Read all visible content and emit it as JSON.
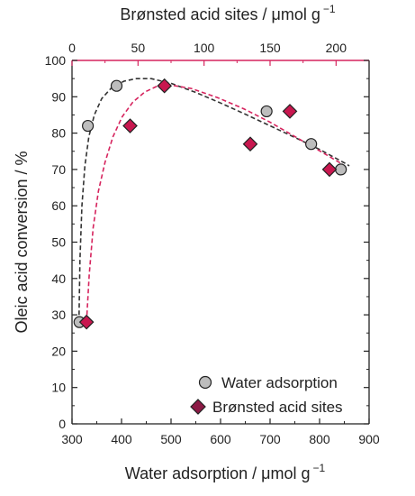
{
  "chart_data": {
    "type": "scatter",
    "xlabel": "Water adsorption / μmol g",
    "xlabel_sup": "−1",
    "x2label": "Brønsted acid sites / μmol g",
    "x2label_sup": "−1",
    "ylabel": "Oleic acid conversion / %",
    "xlim": [
      300,
      900
    ],
    "x2lim": [
      0,
      225
    ],
    "ylim": [
      0,
      100
    ],
    "xticks": [
      300,
      400,
      500,
      600,
      700,
      800,
      900
    ],
    "x2ticks": [
      0,
      50,
      100,
      150,
      200
    ],
    "yticks": [
      0,
      10,
      20,
      30,
      40,
      50,
      60,
      70,
      80,
      90,
      100
    ],
    "grid": false,
    "legend_position": "bottom-right",
    "top_axis_color": "#d6245e",
    "series": [
      {
        "name": "Water adsorption",
        "axis": "bottom",
        "marker": "circle",
        "color": "#bdbdbd",
        "fit_color": "#333333",
        "points": [
          {
            "x": 315,
            "y": 28
          },
          {
            "x": 332,
            "y": 82
          },
          {
            "x": 390,
            "y": 93
          },
          {
            "x": 693,
            "y": 86
          },
          {
            "x": 783,
            "y": 77
          },
          {
            "x": 843,
            "y": 70
          }
        ]
      },
      {
        "name": "Brønsted acid sites",
        "axis": "top",
        "marker": "diamond",
        "color": "#c8174f",
        "fit_color": "#d6245e",
        "points": [
          {
            "x": 11,
            "y": 28
          },
          {
            "x": 44,
            "y": 82
          },
          {
            "x": 70,
            "y": 93
          },
          {
            "x": 135,
            "y": 77
          },
          {
            "x": 165,
            "y": 86
          },
          {
            "x": 195,
            "y": 70
          }
        ]
      }
    ],
    "fits": [
      {
        "series": "Water adsorption",
        "style": "dashed",
        "x": [
          314,
          316,
          320,
          326,
          334,
          345,
          360,
          380,
          405,
          430,
          460,
          500,
          550,
          600,
          650,
          700,
          750,
          800,
          850,
          860
        ],
        "y": [
          28,
          45,
          60,
          71,
          79,
          85,
          89.5,
          92.5,
          94.3,
          95,
          95,
          93.7,
          91.2,
          88.3,
          85.2,
          82,
          78.8,
          75.5,
          71.8,
          71
        ]
      },
      {
        "series": "Brønsted acid sites",
        "style": "dashed",
        "x": [
          11,
          13,
          16,
          20,
          25,
          31,
          38,
          46,
          55,
          65,
          75,
          90,
          110,
          130,
          150,
          170,
          190,
          205
        ],
        "y": [
          28,
          41,
          54,
          64,
          72,
          79,
          84.5,
          88.5,
          91.3,
          93,
          93.2,
          92.3,
          89.8,
          86.7,
          83,
          78.8,
          74.6,
          71.4
        ]
      }
    ]
  }
}
